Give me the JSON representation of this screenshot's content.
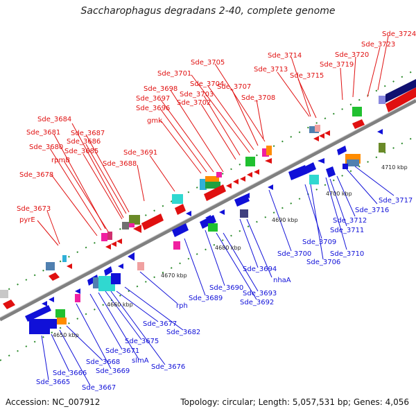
{
  "title": "Saccharophagus degradans 2-40, complete genome",
  "footer": {
    "accession": "Accession: NC_007912",
    "summary": "Topology: circular; Length: 5,057,531 bp; Genes: 4,056"
  },
  "ruler_labels": [
    "4650 kbp",
    "4660 kbp",
    "4670 kbp",
    "4680 kbp",
    "4690 kbp",
    "4700 kbp",
    "4710 kbp"
  ],
  "top_labels": [
    "Sde_3724",
    "Sde_3723",
    "Sde_3720",
    "Sde_3719",
    "Sde_3714",
    "Sde_3713",
    "Sde_3715",
    "Sde_3705",
    "Sde_3701",
    "Sde_3704",
    "Sde_3707",
    "Sde_3698",
    "Sde_3703",
    "Sde_3697",
    "Sde_3702",
    "Sde_3708",
    "Sde_3696",
    "gmk",
    "Sde_3684",
    "Sde_3681",
    "Sde_3687",
    "Sde_3686",
    "Sde_3680",
    "Sde_3685",
    "rpmB",
    "Sde_3688",
    "Sde_3691",
    "Sde_3678",
    "Sde_3673",
    "pyrE"
  ],
  "bottom_labels": [
    "Sde_3717",
    "Sde_3716",
    "Sde_3712",
    "Sde_3711",
    "Sde_3710",
    "Sde_3709",
    "Sde_3706",
    "Sde_3700",
    "Sde_3694",
    "nhaA",
    "Sde_3693",
    "Sde_3692",
    "Sde_3690",
    "Sde_3689",
    "rph",
    "Sde_3682",
    "Sde_3677",
    "Sde_3675",
    "Sde_3676",
    "slmA",
    "Sde_3671",
    "Sde_3669",
    "Sde_3668",
    "Sde_3667",
    "Sde_3666",
    "Sde_3665"
  ],
  "colors": {
    "top_label": "#e01010",
    "bottom_label": "#1010d8",
    "backbone": "#808080",
    "tick": "#2a8a2a"
  }
}
